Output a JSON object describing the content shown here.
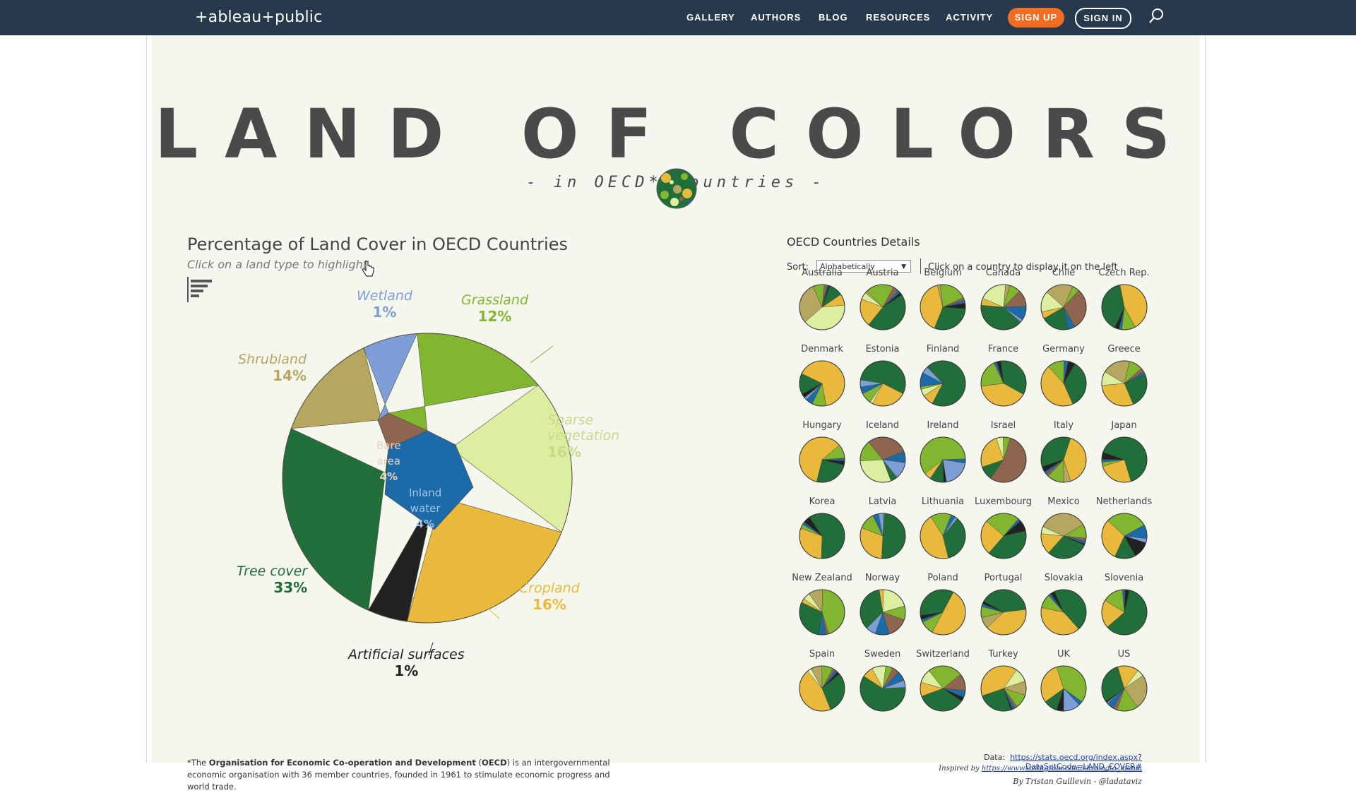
{
  "topbar": {
    "logo": "+ableau+public",
    "nav": [
      "GALLERY",
      "AUTHORS",
      "BLOG",
      "RESOURCES",
      "ACTIVITY"
    ],
    "signup": "SIGN UP",
    "signin": "SIGN IN",
    "search_icon": "search-icon"
  },
  "viz": {
    "title": "LAND OF COLORS",
    "subtitle": "- in OECD* Countries -",
    "left_title": "Percentage of Land Cover in OECD Countries",
    "left_subtitle": "Click on a land type to highlight",
    "right_title": "OECD Countries Details",
    "sort_label": "Sort:",
    "sort_value": "Alphabetically",
    "right_hint": "Click on a country to display it on the left",
    "footnote_pre": "*The ",
    "footnote_org": "Organisation for Economic Co-operation and Development",
    "footnote_mid": " (",
    "footnote_abbr": "OECD",
    "footnote_post": ") is an intergovernmental economic organisation with 36 member countries, founded in 1961 to stimulate economic progress and world trade.",
    "data_label": "Data:",
    "data_url": "https://stats.oecd.org/index.aspx?DataSetCode=LAND_COVER#",
    "inspired_label": "Inspired by",
    "inspired_url": "https://www.instagram.com/chromato_mania",
    "byline": "By Tristan Guillevin - @ladataviz"
  },
  "chart_data": {
    "type": "pie",
    "title": "Percentage of Land Cover in OECD Countries",
    "slices": [
      {
        "name": "Tree cover",
        "line1": "Tree cover",
        "value": 33,
        "label": "33%",
        "color": "#226e3a"
      },
      {
        "name": "Cropland",
        "line1": "Cropland",
        "value": 16,
        "label": "16%",
        "color": "#e8b93c"
      },
      {
        "name": "Sparse vegetation",
        "line1": "Sparse",
        "line2": "vegetation",
        "value": 16,
        "label": "16%",
        "color": "#dcefa0"
      },
      {
        "name": "Shrubland",
        "line1": "Shrubland",
        "value": 14,
        "label": "14%",
        "color": "#b5a760"
      },
      {
        "name": "Grassland",
        "line1": "Grassland",
        "value": 12,
        "label": "12%",
        "color": "#82b530"
      },
      {
        "name": "Bare area",
        "line1": "Bare",
        "line2": "area",
        "value": 4,
        "label": "4%",
        "color": "#8e6650"
      },
      {
        "name": "Inland water",
        "line1": "Inland",
        "line2": "water",
        "value": 4,
        "label": "4%",
        "color": "#1c6aa8"
      },
      {
        "name": "Wetland",
        "line1": "Wetland",
        "value": 1,
        "label": "1%",
        "color": "#7e9ed8"
      },
      {
        "name": "Artificial surfaces",
        "line1": "Artificial surfaces",
        "value": 1,
        "label": "1%",
        "color": "#222222"
      }
    ]
  },
  "countries": [
    {
      "name": "Australia",
      "mix": [
        10,
        8,
        40,
        30,
        8,
        2,
        1,
        0,
        1
      ]
    },
    {
      "name": "Austria",
      "mix": [
        45,
        20,
        5,
        2,
        20,
        4,
        2,
        0,
        2
      ]
    },
    {
      "name": "Belgium",
      "mix": [
        30,
        40,
        0,
        2,
        20,
        2,
        2,
        0,
        4
      ]
    },
    {
      "name": "Canada",
      "mix": [
        40,
        5,
        20,
        3,
        8,
        12,
        10,
        2,
        0
      ]
    },
    {
      "name": "Chile",
      "mix": [
        20,
        5,
        15,
        20,
        5,
        30,
        5,
        0,
        0
      ]
    },
    {
      "name": "Czech Rep.",
      "mix": [
        40,
        45,
        0,
        0,
        10,
        0,
        2,
        0,
        3
      ]
    },
    {
      "name": "Denmark",
      "mix": [
        15,
        65,
        0,
        0,
        10,
        0,
        5,
        2,
        3
      ]
    },
    {
      "name": "Estonia",
      "mix": [
        55,
        25,
        2,
        0,
        8,
        0,
        5,
        5,
        0
      ]
    },
    {
      "name": "Finland",
      "mix": [
        70,
        8,
        5,
        0,
        2,
        0,
        10,
        5,
        0
      ]
    },
    {
      "name": "France",
      "mix": [
        35,
        40,
        0,
        0,
        20,
        0,
        2,
        0,
        3
      ]
    },
    {
      "name": "Germany",
      "mix": [
        35,
        45,
        0,
        0,
        12,
        0,
        3,
        0,
        5
      ]
    },
    {
      "name": "Greece",
      "mix": [
        25,
        30,
        10,
        20,
        10,
        3,
        2,
        0,
        0
      ]
    },
    {
      "name": "Hungary",
      "mix": [
        25,
        60,
        0,
        0,
        10,
        0,
        2,
        0,
        3
      ]
    },
    {
      "name": "Iceland",
      "mix": [
        5,
        0,
        30,
        0,
        15,
        30,
        8,
        12,
        0
      ]
    },
    {
      "name": "Ireland",
      "mix": [
        10,
        5,
        0,
        0,
        60,
        0,
        3,
        20,
        2
      ]
    },
    {
      "name": "Israel",
      "mix": [
        10,
        25,
        5,
        0,
        5,
        55,
        0,
        0,
        0
      ]
    },
    {
      "name": "Italy",
      "mix": [
        35,
        40,
        0,
        5,
        12,
        2,
        2,
        0,
        4
      ]
    },
    {
      "name": "Japan",
      "mix": [
        65,
        25,
        0,
        0,
        3,
        0,
        2,
        0,
        5
      ]
    },
    {
      "name": "Korea",
      "mix": [
        60,
        30,
        0,
        0,
        3,
        0,
        2,
        0,
        5
      ]
    },
    {
      "name": "Latvia",
      "mix": [
        50,
        30,
        0,
        0,
        12,
        0,
        4,
        4,
        0
      ]
    },
    {
      "name": "Lithuania",
      "mix": [
        35,
        45,
        0,
        0,
        15,
        0,
        3,
        2,
        0
      ]
    },
    {
      "name": "Luxembourg",
      "mix": [
        40,
        25,
        0,
        0,
        25,
        0,
        2,
        0,
        8
      ]
    },
    {
      "name": "Mexico",
      "mix": [
        30,
        15,
        5,
        35,
        10,
        2,
        2,
        0,
        1
      ]
    },
    {
      "name": "Netherlands",
      "mix": [
        15,
        30,
        0,
        0,
        30,
        0,
        10,
        3,
        12
      ]
    },
    {
      "name": "New Zealand",
      "mix": [
        30,
        3,
        5,
        10,
        45,
        2,
        5,
        0,
        0
      ]
    },
    {
      "name": "Norway",
      "mix": [
        35,
        3,
        20,
        0,
        10,
        15,
        10,
        7,
        0
      ]
    },
    {
      "name": "Poland",
      "mix": [
        35,
        50,
        0,
        0,
        10,
        0,
        2,
        0,
        3
      ]
    },
    {
      "name": "Portugal",
      "mix": [
        40,
        40,
        0,
        8,
        8,
        0,
        2,
        0,
        2
      ]
    },
    {
      "name": "Slovakia",
      "mix": [
        45,
        40,
        0,
        0,
        10,
        0,
        2,
        0,
        3
      ]
    },
    {
      "name": "Slovenia",
      "mix": [
        60,
        20,
        0,
        0,
        15,
        0,
        2,
        0,
        3
      ]
    },
    {
      "name": "Spain",
      "mix": [
        30,
        45,
        3,
        8,
        8,
        2,
        2,
        0,
        2
      ]
    },
    {
      "name": "Sweden",
      "mix": [
        60,
        8,
        10,
        0,
        5,
        5,
        7,
        5,
        0
      ]
    },
    {
      "name": "Switzerland",
      "mix": [
        35,
        10,
        10,
        0,
        25,
        12,
        5,
        0,
        3
      ]
    },
    {
      "name": "Turkey",
      "mix": [
        25,
        40,
        10,
        10,
        10,
        2,
        2,
        0,
        1
      ]
    },
    {
      "name": "UK",
      "mix": [
        10,
        30,
        0,
        0,
        40,
        0,
        3,
        12,
        5
      ]
    },
    {
      "name": "US",
      "mix": [
        30,
        15,
        5,
        25,
        15,
        3,
        5,
        1,
        1
      ]
    }
  ]
}
